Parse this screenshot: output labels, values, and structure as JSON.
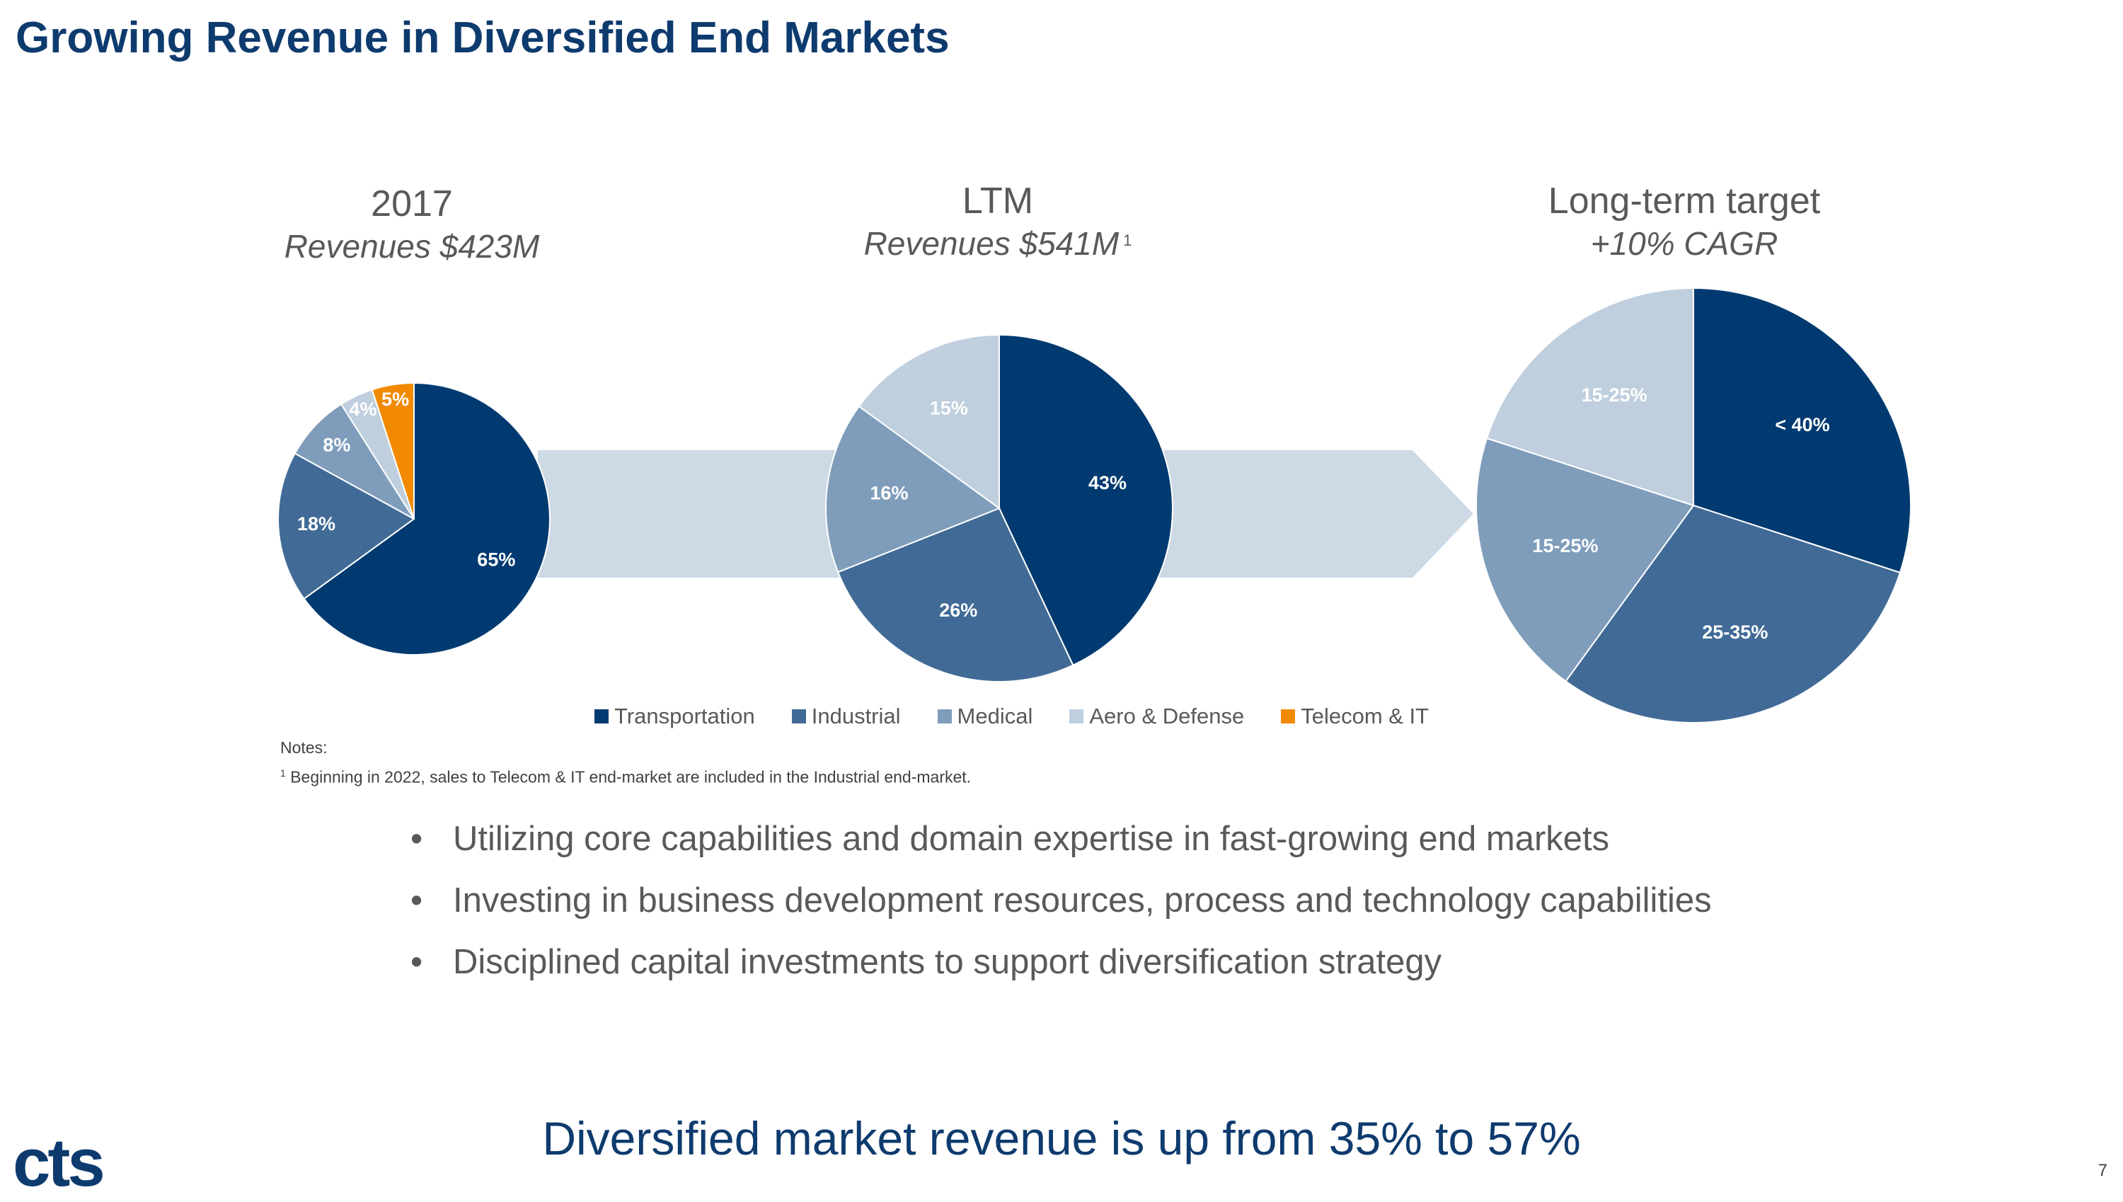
{
  "title": "Growing Revenue in Diversified End Markets",
  "colors": {
    "transportation": "#003a70",
    "industrial": "#416b96",
    "medical": "#7f9dbb",
    "aero_defense": "#bfcfde",
    "telecom_it": "#f18a00",
    "arrow": "#cdd9e5"
  },
  "charts": {
    "c2017": {
      "heading": "2017",
      "subheading": "Revenues $423M"
    },
    "ltm": {
      "heading": "LTM",
      "subheading": "Revenues $541M",
      "footnote_ref": "1"
    },
    "target": {
      "heading": "Long-term target",
      "subheading": "+10% CAGR"
    }
  },
  "chart_data": [
    {
      "type": "pie",
      "title": "2017",
      "categories": [
        "Transportation",
        "Industrial",
        "Medical",
        "Aero & Defense",
        "Telecom & IT"
      ],
      "values": [
        65,
        18,
        8,
        4,
        5
      ],
      "labels": [
        "65%",
        "18%",
        "8%",
        "4%",
        "5%"
      ]
    },
    {
      "type": "pie",
      "title": "LTM",
      "categories": [
        "Transportation",
        "Industrial",
        "Medical",
        "Aero & Defense"
      ],
      "values": [
        43,
        26,
        16,
        15
      ],
      "labels": [
        "43%",
        "26%",
        "16%",
        "15%"
      ]
    },
    {
      "type": "pie",
      "title": "Long-term target",
      "categories": [
        "Transportation",
        "Industrial",
        "Medical",
        "Aero & Defense"
      ],
      "values": [
        30,
        30,
        20,
        20
      ],
      "labels": [
        "< 40%",
        "25-35%",
        "15-25%",
        "15-25%"
      ]
    }
  ],
  "legend": [
    {
      "label": "Transportation",
      "color": "#003a70"
    },
    {
      "label": "Industrial",
      "color": "#416b96"
    },
    {
      "label": "Medical",
      "color": "#7f9dbb"
    },
    {
      "label": "Aero & Defense",
      "color": "#bfcfde"
    },
    {
      "label": "Telecom & IT",
      "color": "#f18a00"
    }
  ],
  "notes": {
    "heading": "Notes:",
    "footnote_mark": "1",
    "footnote_text": "Beginning in 2022, sales to Telecom & IT end-market are included in the Industrial end-market."
  },
  "bullets": [
    "Utilizing core capabilities and domain expertise in fast-growing end markets",
    "Investing in business development resources, process and technology capabilities",
    "Disciplined capital investments to support diversification strategy"
  ],
  "bottom_line": "Diversified market revenue is up from 35% to 57%",
  "logo_text": "cts",
  "page_number": "7"
}
